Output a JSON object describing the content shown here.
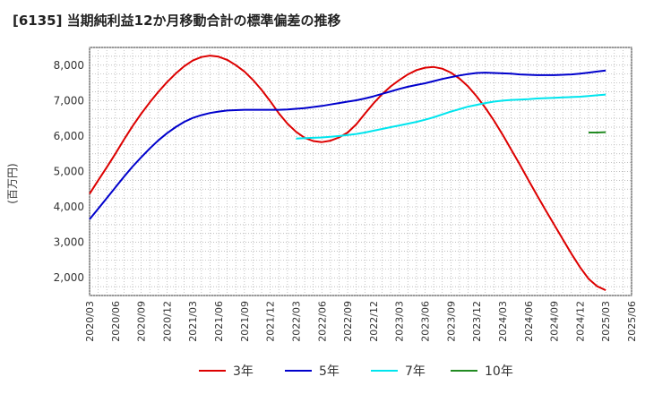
{
  "title": "[6135]  当期純利益12か月移動合計の標準偏差の推移",
  "chart_data": {
    "type": "line",
    "title": "[6135]  当期純利益12か月移動合計の標準偏差の推移",
    "xlabel": "",
    "ylabel": "(百万円)",
    "x_ticks": [
      "2020/03",
      "2020/06",
      "2020/09",
      "2020/12",
      "2021/03",
      "2021/06",
      "2021/09",
      "2021/12",
      "2022/03",
      "2022/06",
      "2022/09",
      "2022/12",
      "2023/03",
      "2023/06",
      "2023/09",
      "2023/12",
      "2024/03",
      "2024/06",
      "2024/09",
      "2024/12",
      "2025/03",
      "2025/06"
    ],
    "y_ticks": [
      2000,
      3000,
      4000,
      5000,
      6000,
      7000,
      8000
    ],
    "y_tick_labels": [
      "2,000",
      "3,000",
      "4,000",
      "5,000",
      "6,000",
      "7,000",
      "8,000"
    ],
    "ylim": [
      1500,
      8500
    ],
    "grid": true,
    "legend_position": "bottom",
    "series": [
      {
        "name": "3年",
        "color": "#dd0000",
        "x": [
          "2020/03",
          "2020/04",
          "2020/05",
          "2020/06",
          "2020/07",
          "2020/08",
          "2020/09",
          "2020/10",
          "2020/11",
          "2020/12",
          "2021/01",
          "2021/02",
          "2021/03",
          "2021/04",
          "2021/05",
          "2021/06",
          "2021/07",
          "2021/08",
          "2021/09",
          "2021/10",
          "2021/11",
          "2021/12",
          "2022/01",
          "2022/02",
          "2022/03",
          "2022/04",
          "2022/05",
          "2022/06",
          "2022/07",
          "2022/08",
          "2022/09",
          "2022/10",
          "2022/11",
          "2022/12",
          "2023/01",
          "2023/02",
          "2023/03",
          "2023/04",
          "2023/05",
          "2023/06",
          "2023/07",
          "2023/08",
          "2023/09",
          "2023/10",
          "2023/11",
          "2023/12",
          "2024/01",
          "2024/02",
          "2024/03",
          "2024/04",
          "2024/05",
          "2024/06",
          "2024/07",
          "2024/08",
          "2024/09",
          "2024/10",
          "2024/11",
          "2024/12",
          "2025/01",
          "2025/02",
          "2025/03"
        ],
        "values": [
          4370,
          4750,
          5120,
          5500,
          5900,
          6280,
          6630,
          6950,
          7250,
          7520,
          7760,
          7970,
          8130,
          8230,
          8270,
          8240,
          8150,
          8000,
          7820,
          7580,
          7300,
          6980,
          6640,
          6350,
          6120,
          5950,
          5860,
          5830,
          5870,
          5960,
          6100,
          6330,
          6630,
          6920,
          7180,
          7400,
          7580,
          7740,
          7860,
          7930,
          7950,
          7900,
          7790,
          7620,
          7400,
          7120,
          6800,
          6440,
          6040,
          5620,
          5200,
          4760,
          4330,
          3910,
          3500,
          3090,
          2680,
          2300,
          1970,
          1760,
          1650
        ]
      },
      {
        "name": "5年",
        "color": "#0000cc",
        "x": [
          "2020/03",
          "2020/04",
          "2020/05",
          "2020/06",
          "2020/07",
          "2020/08",
          "2020/09",
          "2020/10",
          "2020/11",
          "2020/12",
          "2021/01",
          "2021/02",
          "2021/03",
          "2021/04",
          "2021/05",
          "2021/06",
          "2021/07",
          "2021/08",
          "2021/09",
          "2021/10",
          "2021/11",
          "2021/12",
          "2022/01",
          "2022/02",
          "2022/03",
          "2022/04",
          "2022/05",
          "2022/06",
          "2022/07",
          "2022/08",
          "2022/09",
          "2022/10",
          "2022/11",
          "2022/12",
          "2023/01",
          "2023/02",
          "2023/03",
          "2023/04",
          "2023/05",
          "2023/06",
          "2023/07",
          "2023/08",
          "2023/09",
          "2023/10",
          "2023/11",
          "2023/12",
          "2024/01",
          "2024/02",
          "2024/03",
          "2024/04",
          "2024/05",
          "2024/06",
          "2024/07",
          "2024/08",
          "2024/09",
          "2024/10",
          "2024/11",
          "2024/12",
          "2025/01",
          "2025/02",
          "2025/03"
        ],
        "values": [
          3650,
          3950,
          4250,
          4550,
          4850,
          5140,
          5400,
          5650,
          5880,
          6080,
          6250,
          6400,
          6510,
          6590,
          6650,
          6690,
          6720,
          6730,
          6740,
          6740,
          6740,
          6740,
          6740,
          6750,
          6770,
          6790,
          6820,
          6850,
          6890,
          6930,
          6970,
          7010,
          7060,
          7120,
          7190,
          7260,
          7330,
          7390,
          7440,
          7490,
          7550,
          7610,
          7660,
          7710,
          7750,
          7780,
          7790,
          7780,
          7770,
          7760,
          7740,
          7730,
          7720,
          7720,
          7720,
          7730,
          7740,
          7760,
          7790,
          7820,
          7850
        ]
      },
      {
        "name": "7年",
        "color": "#00e5ee",
        "x": [
          "2022/03",
          "2022/04",
          "2022/05",
          "2022/06",
          "2022/07",
          "2022/08",
          "2022/09",
          "2022/10",
          "2022/11",
          "2022/12",
          "2023/01",
          "2023/02",
          "2023/03",
          "2023/04",
          "2023/05",
          "2023/06",
          "2023/07",
          "2023/08",
          "2023/09",
          "2023/10",
          "2023/11",
          "2023/12",
          "2024/01",
          "2024/02",
          "2024/03",
          "2024/04",
          "2024/05",
          "2024/06",
          "2024/07",
          "2024/08",
          "2024/09",
          "2024/10",
          "2024/11",
          "2024/12",
          "2025/01",
          "2025/02",
          "2025/03"
        ],
        "values": [
          5930,
          5940,
          5950,
          5960,
          5980,
          6000,
          6030,
          6060,
          6100,
          6150,
          6200,
          6250,
          6300,
          6350,
          6400,
          6460,
          6530,
          6610,
          6690,
          6760,
          6830,
          6880,
          6930,
          6970,
          7000,
          7020,
          7030,
          7040,
          7060,
          7070,
          7080,
          7090,
          7100,
          7110,
          7130,
          7150,
          7170
        ]
      },
      {
        "name": "10年",
        "color": "#228b22",
        "x": [
          "2025/01",
          "2025/02",
          "2025/03"
        ],
        "values": [
          6100,
          6100,
          6110
        ]
      }
    ]
  }
}
